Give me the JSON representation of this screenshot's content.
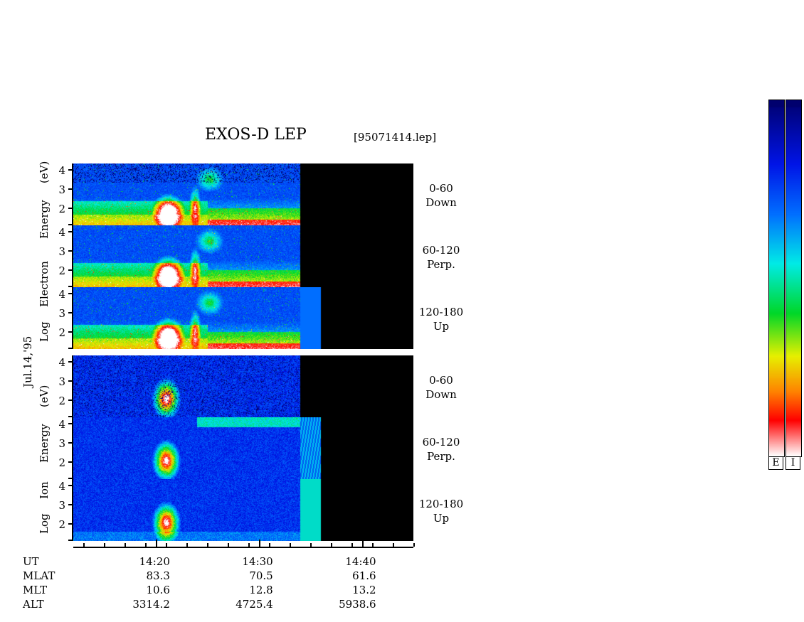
{
  "header": {
    "title": "EXOS-D LEP",
    "filename": "[95071414.lep]"
  },
  "date_label": "Jul.14,'95",
  "colorbar": {
    "labels": [
      "E",
      "I"
    ]
  },
  "chart_data": {
    "type": "heatmap",
    "time_axis": {
      "range": [
        "14:12",
        "14:45"
      ],
      "tick_labels": [
        "14:20",
        "14:30",
        "14:40"
      ],
      "data_end": "14:34",
      "box_end": "14:36"
    },
    "y_tick_labels": [
      "4",
      "3",
      "2"
    ],
    "groups": [
      {
        "name": "electron",
        "ylabel": "Log Electron Energy (eV)",
        "ylabel_words": [
          "Log",
          "Electron",
          "Energy",
          "(eV)"
        ],
        "panels": [
          {
            "angle_range": "0-60",
            "direction": "Down"
          },
          {
            "angle_range": "60-120",
            "direction": "Perp."
          },
          {
            "angle_range": "120-180",
            "direction": "Up"
          }
        ]
      },
      {
        "name": "ion",
        "ylabel": "Log Ion Energy (eV)",
        "ylabel_words": [
          "Log",
          "Ion",
          "Energy",
          "(eV)"
        ],
        "panels": [
          {
            "angle_range": "0-60",
            "direction": "Down"
          },
          {
            "angle_range": "60-120",
            "direction": "Perp."
          },
          {
            "angle_range": "120-180",
            "direction": "Up"
          }
        ]
      }
    ],
    "ephemeris": {
      "rows": [
        {
          "label": "UT",
          "values": [
            "14:20",
            "14:30",
            "14:40"
          ]
        },
        {
          "label": "MLAT",
          "values": [
            "83.3",
            "70.5",
            "61.6"
          ]
        },
        {
          "label": "MLT",
          "values": [
            "10.6",
            "12.8",
            "13.2"
          ]
        },
        {
          "label": "ALT",
          "values": [
            "3314.2",
            "4725.4",
            "5938.6"
          ]
        }
      ]
    },
    "colorscale": [
      "#ffffff",
      "#ff0000",
      "#ffff00",
      "#00ff00",
      "#00ffff",
      "#0000ff",
      "#00007f"
    ]
  }
}
